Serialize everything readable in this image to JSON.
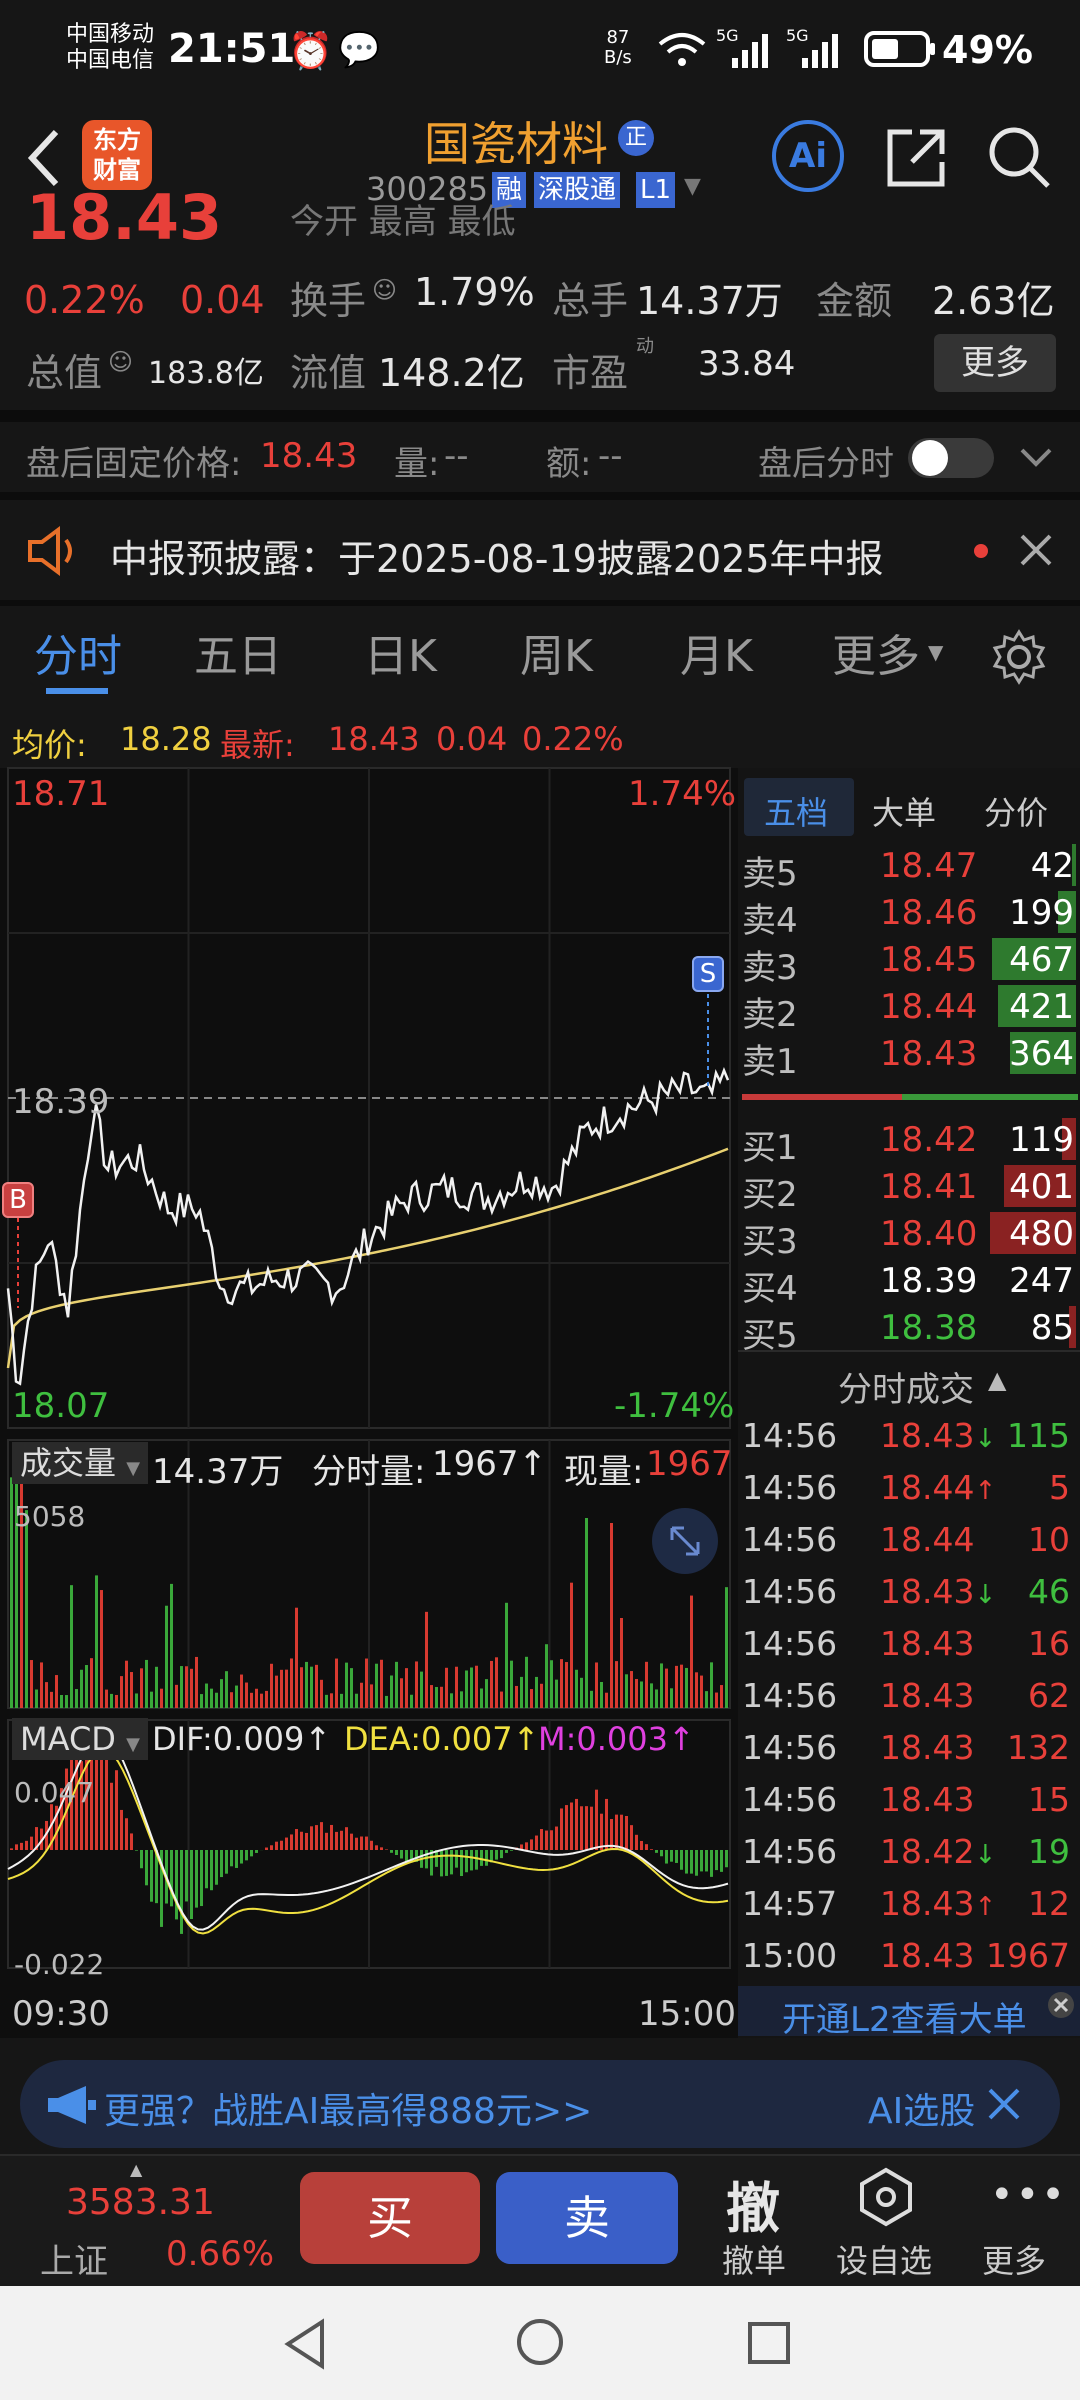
{
  "status": {
    "carrier1": "中国移动",
    "carrier2": "中国电信",
    "time": "21:51",
    "speed_num": "87",
    "speed_unit": "B/s",
    "net1": "5G",
    "net2": "5G",
    "battery": "49%"
  },
  "header": {
    "logo_line1": "东方",
    "logo_line2": "财富",
    "stock_name": "国瓷材料",
    "zheng_badge": "正",
    "code": "300285",
    "tags": [
      "融",
      "深股通",
      "L1"
    ]
  },
  "quote": {
    "price": "18.43",
    "pct": "0.22%",
    "chg": "0.04",
    "turnover_label": "换手",
    "turnover": "1.79%",
    "volume_label": "总手",
    "volume": "14.37万",
    "amount_label": "金额",
    "amount": "2.63亿",
    "mktcap_label": "总值",
    "mktcap": "183.8亿",
    "float_label": "流值",
    "float": "148.2亿",
    "pe_label": "市盈",
    "pe_sup": "动",
    "pe": "33.84",
    "more": "更多",
    "partial_top": "今开  最高  最低"
  },
  "afterhours": {
    "label": "盘后固定价格:",
    "price": "18.43",
    "vol_label": "量:",
    "vol": "--",
    "amt_label": "额:",
    "amt": "--",
    "tsh_label": "盘后分时"
  },
  "notice": {
    "text": "中报预披露：于2025-08-19披露2025年中报"
  },
  "tabs": [
    "分时",
    "五日",
    "日K",
    "周K",
    "月K",
    "更多"
  ],
  "info_line": {
    "avg_label": "均价:",
    "avg": "18.28",
    "new_label": "最新:",
    "new": "18.43",
    "chg": "0.04",
    "pct": "0.22%"
  },
  "chart_labels": {
    "high": "18.71",
    "high_pct": "1.74%",
    "mid": "18.39",
    "low": "18.07",
    "low_pct": "-1.74%",
    "b": "B",
    "s": "S",
    "t_start": "09:30",
    "t_end": "15:00"
  },
  "volume_panel": {
    "sel": "成交量",
    "total": "14.37万",
    "tick_label": "分时量:",
    "tick": "1967↑",
    "now_label": "现量:",
    "now": "1967",
    "max": "5058"
  },
  "macd_panel": {
    "sel": "MACD",
    "dif": "DIF:0.009↑",
    "dea": "DEA:0.007↑",
    "m": "M:0.003↑",
    "max": "0.047",
    "min": "-0.022"
  },
  "ob_tabs": [
    "五档",
    "大单",
    "分价"
  ],
  "asks": [
    {
      "l": "卖5",
      "p": "18.47",
      "v": "42",
      "w": 0.03
    },
    {
      "l": "卖4",
      "p": "18.46",
      "v": "199",
      "w": 0.15
    },
    {
      "l": "卖3",
      "p": "18.45",
      "v": "467",
      "w": 0.7
    },
    {
      "l": "卖2",
      "p": "18.44",
      "v": "421",
      "w": 0.65
    },
    {
      "l": "卖1",
      "p": "18.43",
      "v": "364",
      "w": 0.55
    }
  ],
  "bids": [
    {
      "l": "买1",
      "p": "18.42",
      "v": "119",
      "w": 0.12
    },
    {
      "l": "买2",
      "p": "18.41",
      "v": "401",
      "w": 0.6
    },
    {
      "l": "买3",
      "p": "18.40",
      "v": "480",
      "w": 0.72
    },
    {
      "l": "买4",
      "p": "18.39",
      "v": "247",
      "w": 0.0
    },
    {
      "l": "买5",
      "p": "18.38",
      "v": "85",
      "w": 0.06
    }
  ],
  "trades_title": "分时成交",
  "trades": [
    {
      "t": "14:56",
      "p": "18.43",
      "a": "↓",
      "v": "115",
      "c": "green"
    },
    {
      "t": "14:56",
      "p": "18.44",
      "a": "↑",
      "v": "5",
      "c": "red"
    },
    {
      "t": "14:56",
      "p": "18.44",
      "a": "",
      "v": "10",
      "c": "red"
    },
    {
      "t": "14:56",
      "p": "18.43",
      "a": "↓",
      "v": "46",
      "c": "green"
    },
    {
      "t": "14:56",
      "p": "18.43",
      "a": "",
      "v": "16",
      "c": "red"
    },
    {
      "t": "14:56",
      "p": "18.43",
      "a": "",
      "v": "62",
      "c": "red"
    },
    {
      "t": "14:56",
      "p": "18.43",
      "a": "",
      "v": "132",
      "c": "red"
    },
    {
      "t": "14:56",
      "p": "18.43",
      "a": "",
      "v": "15",
      "c": "red"
    },
    {
      "t": "14:56",
      "p": "18.42",
      "a": "↓",
      "v": "19",
      "c": "green"
    },
    {
      "t": "14:57",
      "p": "18.43",
      "a": "↑",
      "v": "12",
      "c": "red"
    },
    {
      "t": "15:00",
      "p": "18.43",
      "a": "",
      "v": "1967",
      "c": "red"
    }
  ],
  "l2_link": "开通L2查看大单",
  "banner": {
    "text": "更强？战胜AI最高得888元>>",
    "right": "AI选股"
  },
  "bottom": {
    "index_val": "3583.31",
    "index_name": "上证",
    "index_pct": "0.66%",
    "buy": "买",
    "sell": "卖",
    "cancel_icon": "撤",
    "cancel": "撤单",
    "watch": "设自选",
    "more": "更多"
  },
  "colors": {
    "up": "#e8403a",
    "down": "#3fbf3f",
    "accent": "#f0a030",
    "buy_btn": "#b8403a",
    "sell_btn": "#3a5fc8"
  }
}
